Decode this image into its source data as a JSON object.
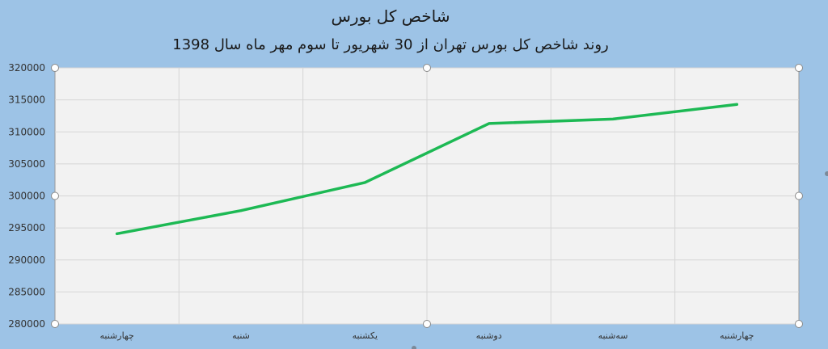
{
  "chart_data": {
    "type": "line",
    "title": "شاخص کل بورس",
    "subtitle": "روند شاخص کل بورس تهران از 30 شهریور تا سوم مهر ماه سال 1398",
    "categories": [
      "چهارشنبه",
      "شنبه",
      "یکشنبه",
      "دوشنبه",
      "سه‌شنبه",
      "چهارشنبه"
    ],
    "series": [
      {
        "values": [
          294100,
          297700,
          302100,
          311300,
          312000,
          314300
        ],
        "color": "#1db954"
      }
    ],
    "ylim": [
      280000,
      320000
    ],
    "yticks": [
      "320000",
      "315000",
      "310000",
      "305000",
      "300000",
      "295000",
      "290000",
      "285000",
      "280000"
    ],
    "grid": true,
    "legend": "none"
  },
  "colors": {
    "background": "#9dc3e6",
    "plot_area": "#f2f2f2",
    "line": "#1db954"
  }
}
